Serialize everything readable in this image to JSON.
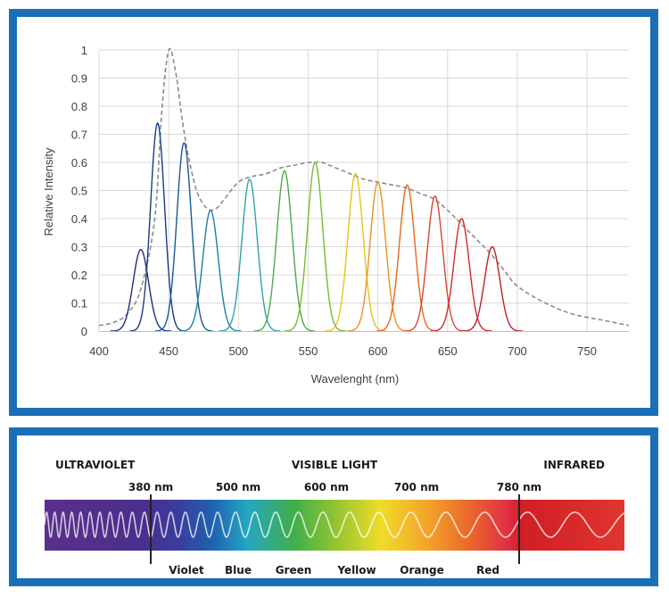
{
  "chart_data": {
    "type": "line",
    "xlabel": "Wavelenght (nm)",
    "ylabel": "Relative Intensity",
    "xlim": [
      400,
      780
    ],
    "ylim": [
      0,
      1
    ],
    "x_ticks": [
      "400",
      "450",
      "500",
      "550",
      "600",
      "650",
      "700",
      "750"
    ],
    "y_ticks": [
      "0",
      "0.1",
      "0.2",
      "0.3",
      "0.4",
      "0.5",
      "0.6",
      "0.7",
      "0.8",
      "0.9",
      "1"
    ],
    "grid": true,
    "peaks": [
      {
        "center": 430,
        "value": 0.29,
        "width": 5.5,
        "color": "#1f2f7a"
      },
      {
        "center": 442,
        "value": 0.74,
        "width": 5.0,
        "color": "#1b3b86"
      },
      {
        "center": 461,
        "value": 0.67,
        "width": 5.2,
        "color": "#1a5a96"
      },
      {
        "center": 480,
        "value": 0.43,
        "width": 5.5,
        "color": "#1f7fa5"
      },
      {
        "center": 508,
        "value": 0.54,
        "width": 5.5,
        "color": "#2aa6a8"
      },
      {
        "center": 533,
        "value": 0.57,
        "width": 5.5,
        "color": "#4da84a"
      },
      {
        "center": 555,
        "value": 0.6,
        "width": 5.5,
        "color": "#7cb82c"
      },
      {
        "center": 584,
        "value": 0.56,
        "width": 5.5,
        "color": "#e8c21a"
      },
      {
        "center": 600,
        "value": 0.53,
        "width": 5.5,
        "color": "#e8941e"
      },
      {
        "center": 621,
        "value": 0.52,
        "width": 5.5,
        "color": "#e26a20"
      },
      {
        "center": 641,
        "value": 0.48,
        "width": 5.5,
        "color": "#d9472a"
      },
      {
        "center": 660,
        "value": 0.4,
        "width": 5.5,
        "color": "#d3282a"
      },
      {
        "center": 682,
        "value": 0.3,
        "width": 5.5,
        "color": "#c21f2a"
      }
    ],
    "envelope": {
      "color": "#8c8c8c",
      "x": [
        400,
        410,
        420,
        430,
        440,
        445,
        450,
        455,
        460,
        465,
        470,
        475,
        480,
        485,
        490,
        500,
        510,
        520,
        530,
        540,
        550,
        555,
        560,
        570,
        580,
        590,
        600,
        610,
        620,
        630,
        640,
        650,
        660,
        670,
        680,
        690,
        700,
        720,
        740,
        760,
        780
      ],
      "y": [
        0.02,
        0.03,
        0.06,
        0.15,
        0.4,
        0.78,
        1.0,
        0.92,
        0.74,
        0.6,
        0.5,
        0.45,
        0.43,
        0.44,
        0.47,
        0.53,
        0.55,
        0.56,
        0.58,
        0.59,
        0.6,
        0.6,
        0.6,
        0.58,
        0.56,
        0.54,
        0.53,
        0.52,
        0.51,
        0.49,
        0.47,
        0.43,
        0.38,
        0.33,
        0.28,
        0.22,
        0.16,
        0.1,
        0.06,
        0.04,
        0.02
      ]
    }
  },
  "spectrum": {
    "region_labels": {
      "ultraviolet": "ULTRAVIOLET",
      "visible": "VISIBLE LIGHT",
      "infrared": "INFRARED"
    },
    "wavelength_labels": [
      "380 nm",
      "500 nm",
      "600 nm",
      "700 nm",
      "780 nm"
    ],
    "color_labels": [
      "Violet",
      "Blue",
      "Green",
      "Yellow",
      "Orange",
      "Red"
    ],
    "colors": {
      "frame": "#1a6fb6",
      "wave": "#ffffff",
      "divider": "#222222"
    }
  }
}
